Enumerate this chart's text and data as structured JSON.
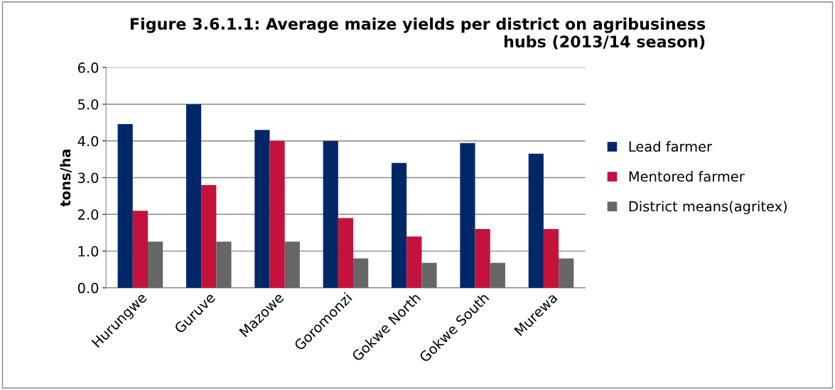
{
  "chart_data": {
    "type": "bar",
    "title": "Figure 3.6.1.1: Average maize yields per district on agribusiness\nhubs (2013/14 season)",
    "ylabel": "tons/ha",
    "categories": [
      "Hurungwe",
      "Guruve",
      "Mazowe",
      "Goromonzi",
      "Gokwe North",
      "Gokwe South",
      "Murewa"
    ],
    "series": [
      {
        "name": "Lead farmer",
        "color": "#002868",
        "values": [
          4.46,
          5.0,
          4.3,
          4.0,
          3.4,
          3.94,
          3.65
        ]
      },
      {
        "name": "Mentored farmer",
        "color": "#c4123c",
        "values": [
          2.1,
          2.8,
          4.0,
          1.9,
          1.4,
          1.6,
          1.6
        ]
      },
      {
        "name": "District means(agritex)",
        "color": "#666666",
        "values": [
          1.26,
          1.26,
          1.26,
          0.8,
          0.68,
          0.68,
          0.8
        ]
      }
    ],
    "ylim": [
      0,
      6
    ],
    "yticks": [
      {
        "value": 0,
        "label": "0.0"
      },
      {
        "value": 1,
        "label": "1.0"
      },
      {
        "value": 2,
        "label": "2.0"
      },
      {
        "value": 3,
        "label": "3.0"
      },
      {
        "value": 4,
        "label": "4.0"
      },
      {
        "value": 5,
        "label": "5.0"
      },
      {
        "value": 6,
        "label": "6.0"
      }
    ],
    "grid": "y",
    "legend": "right"
  }
}
